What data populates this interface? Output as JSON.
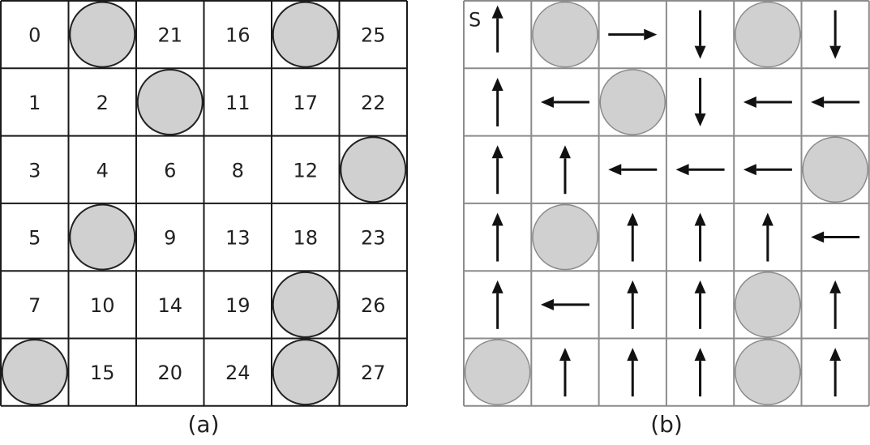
{
  "panel_a": {
    "caption": "(a)",
    "cells": [
      [
        "0",
        "obstacle",
        "21",
        "16",
        "obstacle",
        "25"
      ],
      [
        "1",
        "2",
        "obstacle",
        "11",
        "17",
        "22"
      ],
      [
        "3",
        "4",
        "6",
        "8",
        "12",
        "obstacle"
      ],
      [
        "5",
        "obstacle",
        "9",
        "13",
        "18",
        "23"
      ],
      [
        "7",
        "10",
        "14",
        "19",
        "obstacle",
        "26"
      ],
      [
        "obstacle",
        "15",
        "20",
        "24",
        "obstacle",
        "27"
      ]
    ]
  },
  "panel_b": {
    "caption": "(b)",
    "start_label": "S",
    "cells": [
      [
        "start-up",
        "obstacle",
        "right",
        "down",
        "obstacle",
        "down"
      ],
      [
        "up",
        "left",
        "obstacle",
        "down",
        "left",
        "left"
      ],
      [
        "up",
        "up",
        "left",
        "left",
        "left",
        "obstacle"
      ],
      [
        "up",
        "obstacle",
        "up",
        "up",
        "up",
        "left"
      ],
      [
        "up",
        "left",
        "up",
        "up",
        "obstacle",
        "up"
      ],
      [
        "obstacle",
        "up",
        "up",
        "up",
        "obstacle",
        "up"
      ]
    ]
  },
  "colors": {
    "obstacle_fill": "#d0d0d0",
    "grid_a": "#1a1a1a",
    "grid_b": "#8c8c8c",
    "arrow": "#111111",
    "obstacle_stroke_a": "#222222",
    "obstacle_stroke_b": "#8c8c8c"
  }
}
